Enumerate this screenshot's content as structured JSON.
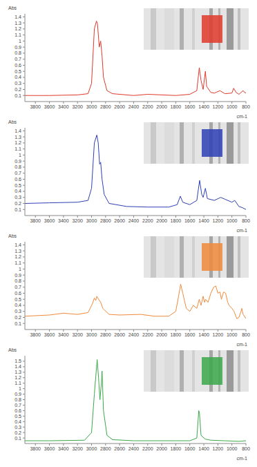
{
  "chart_data": [
    {
      "type": "line",
      "x_label": "cm-1",
      "y_label": "Abs",
      "x": [
        3950,
        3600,
        3200,
        3050,
        3000,
        2960,
        2930,
        2915,
        2890,
        2870,
        2850,
        2830,
        2780,
        2700,
        2400,
        2200,
        1800,
        1600,
        1500,
        1465,
        1440,
        1410,
        1378,
        1360,
        1300,
        1250,
        1170,
        1100,
        1000,
        975,
        940,
        900,
        840,
        810,
        800
      ],
      "xlim": [
        3950,
        800
      ],
      "xticks": [
        3800,
        3600,
        3400,
        3200,
        3000,
        2800,
        2600,
        2400,
        2200,
        2000,
        1800,
        1600,
        1400,
        1200,
        1000,
        800
      ],
      "ylim": [
        0,
        1.45
      ],
      "yticks": [
        0.1,
        0.2,
        0.3,
        0.4,
        0.5,
        0.6,
        0.7,
        0.8,
        0.9,
        1,
        1.1,
        1.2,
        1.3,
        1.4
      ],
      "series": [
        {
          "color": "#e0392b",
          "values": [
            0.1,
            0.1,
            0.11,
            0.13,
            0.3,
            1.2,
            1.33,
            1.28,
            0.9,
            1.0,
            0.75,
            0.4,
            0.18,
            0.13,
            0.1,
            0.12,
            0.1,
            0.12,
            0.18,
            0.56,
            0.35,
            0.2,
            0.5,
            0.25,
            0.15,
            0.14,
            0.18,
            0.13,
            0.14,
            0.22,
            0.15,
            0.12,
            0.18,
            0.14,
            0.15
          ]
        }
      ]
    },
    {
      "type": "line",
      "x_label": "cm-1",
      "y_label": "Abs",
      "x": [
        3950,
        3600,
        3200,
        3050,
        3000,
        2960,
        2925,
        2905,
        2885,
        2870,
        2850,
        2820,
        2750,
        2500,
        2200,
        1900,
        1780,
        1735,
        1700,
        1600,
        1500,
        1460,
        1430,
        1410,
        1378,
        1350,
        1250,
        1160,
        1100,
        1000,
        960,
        900,
        850,
        800
      ],
      "xlim": [
        3950,
        800
      ],
      "xticks": [
        3800,
        3600,
        3400,
        3200,
        3000,
        2800,
        2600,
        2400,
        2200,
        2000,
        1800,
        1600,
        1400,
        1200,
        1000,
        800
      ],
      "ylim": [
        0,
        1.45
      ],
      "yticks": [
        0.1,
        0.2,
        0.3,
        0.4,
        0.5,
        0.6,
        0.7,
        0.8,
        0.9,
        1,
        1.1,
        1.2,
        1.3,
        1.4
      ],
      "series": [
        {
          "color": "#2e3fb5",
          "values": [
            0.2,
            0.21,
            0.22,
            0.25,
            0.45,
            1.2,
            1.33,
            1.2,
            0.85,
            0.88,
            0.6,
            0.35,
            0.2,
            0.15,
            0.14,
            0.14,
            0.18,
            0.32,
            0.22,
            0.18,
            0.25,
            0.58,
            0.35,
            0.3,
            0.45,
            0.28,
            0.25,
            0.3,
            0.27,
            0.22,
            0.25,
            0.15,
            0.13,
            0.1
          ]
        }
      ]
    },
    {
      "type": "line",
      "x_label": "cm-1",
      "y_label": "Abs",
      "x": [
        3950,
        3600,
        3400,
        3200,
        3050,
        2990,
        2960,
        2940,
        2925,
        2900,
        2870,
        2840,
        2750,
        2600,
        2300,
        2100,
        1900,
        1800,
        1760,
        1730,
        1700,
        1650,
        1600,
        1550,
        1500,
        1465,
        1440,
        1410,
        1390,
        1375,
        1340,
        1300,
        1260,
        1230,
        1200,
        1170,
        1150,
        1120,
        1090,
        1060,
        1040,
        1000,
        970,
        930,
        900,
        870,
        860,
        840,
        800
      ],
      "xlim": [
        3950,
        800
      ],
      "xticks": [
        3800,
        3600,
        3400,
        3200,
        3000,
        2800,
        2600,
        2400,
        2200,
        2000,
        1800,
        1600,
        1400,
        1200,
        1000,
        800
      ],
      "ylim": [
        0,
        1.45
      ],
      "yticks": [
        0.1,
        0.2,
        0.3,
        0.4,
        0.5,
        0.6,
        0.7,
        0.8,
        0.9,
        1,
        1.1,
        1.2,
        1.3,
        1.4
      ],
      "series": [
        {
          "color": "#f08a3c",
          "values": [
            0.22,
            0.24,
            0.27,
            0.25,
            0.28,
            0.42,
            0.52,
            0.48,
            0.55,
            0.5,
            0.45,
            0.35,
            0.25,
            0.24,
            0.25,
            0.22,
            0.22,
            0.3,
            0.55,
            0.75,
            0.6,
            0.35,
            0.3,
            0.4,
            0.35,
            0.5,
            0.4,
            0.55,
            0.45,
            0.5,
            0.45,
            0.6,
            0.7,
            0.72,
            0.6,
            0.62,
            0.5,
            0.62,
            0.6,
            0.45,
            0.4,
            0.35,
            0.3,
            0.18,
            0.2,
            0.3,
            0.35,
            0.25,
            0.18
          ]
        }
      ]
    },
    {
      "type": "line",
      "x_label": "cm-1",
      "y_label": "Abs",
      "x": [
        3950,
        3600,
        3100,
        3000,
        2960,
        2920,
        2900,
        2880,
        2860,
        2850,
        2830,
        2780,
        2700,
        2400,
        1800,
        1600,
        1500,
        1472,
        1462,
        1440,
        1380,
        1300,
        1100,
        900,
        800
      ],
      "xlim": [
        3950,
        800
      ],
      "xticks": [
        3800,
        3600,
        3400,
        3200,
        3000,
        2800,
        2600,
        2400,
        2200,
        2000,
        1800,
        1600,
        1400,
        1200,
        1000,
        800
      ],
      "ylim": [
        0,
        1.6
      ],
      "yticks": [
        0.1,
        0.2,
        0.3,
        0.4,
        0.5,
        0.6,
        0.7,
        0.8,
        0.9,
        1,
        1.1,
        1.2,
        1.3,
        1.4,
        1.5
      ],
      "series": [
        {
          "color": "#3aa84a",
          "values": [
            0.05,
            0.05,
            0.06,
            0.2,
            0.9,
            1.53,
            1.2,
            0.8,
            1.1,
            1.32,
            0.6,
            0.15,
            0.07,
            0.05,
            0.05,
            0.05,
            0.1,
            0.6,
            0.55,
            0.15,
            0.08,
            0.06,
            0.05,
            0.04,
            0.05
          ]
        }
      ]
    }
  ]
}
